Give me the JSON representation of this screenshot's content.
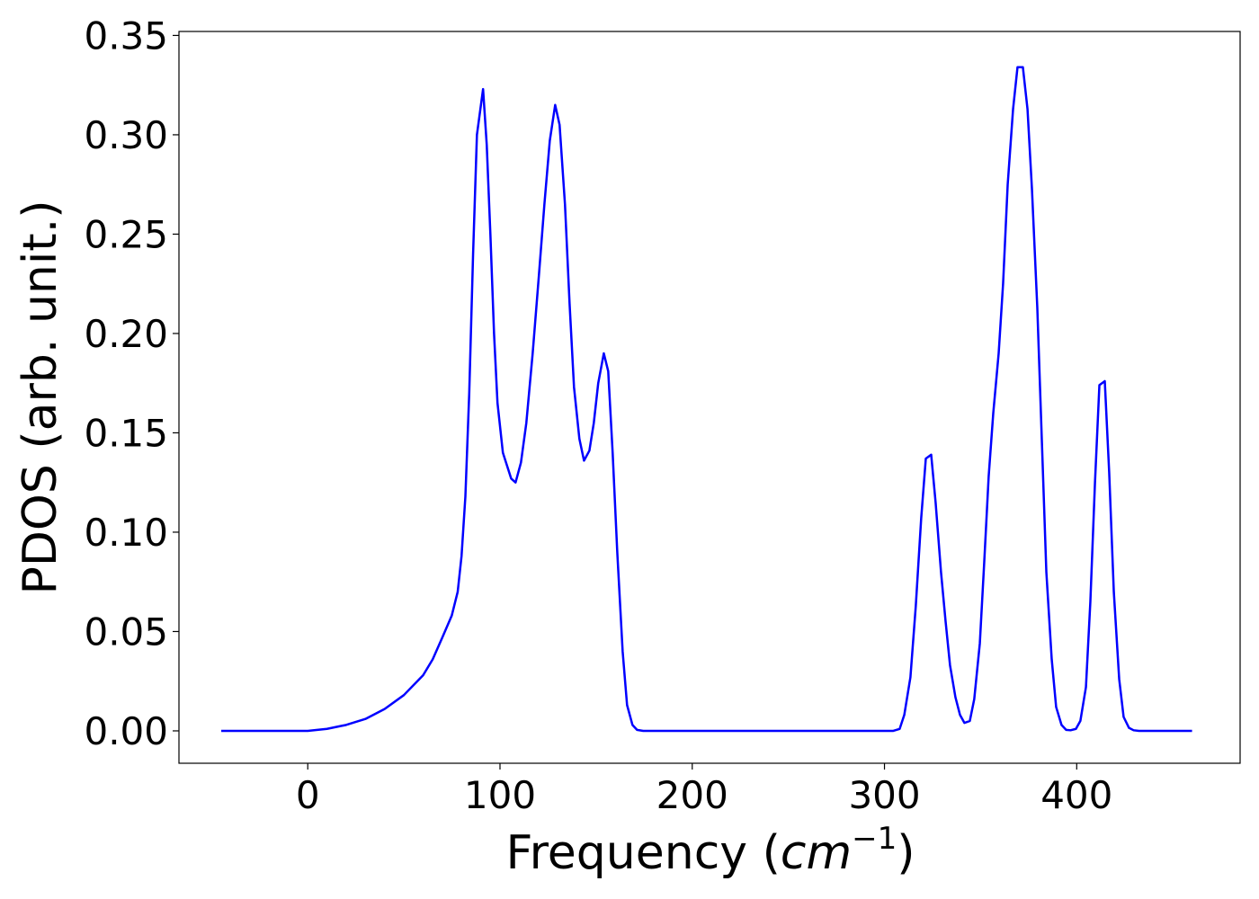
{
  "chart_data": {
    "type": "line",
    "xlabel": [
      "Frequency (",
      "cm",
      "−1",
      ")"
    ],
    "ylabel": "PDOS (arb. unit.)",
    "color": "#0000ff",
    "x": [
      -45,
      0,
      10,
      20,
      30,
      40,
      50,
      60,
      65,
      70,
      74.9,
      78,
      80,
      82,
      84,
      86,
      88,
      91.2,
      93.1,
      95,
      96.9,
      98.7,
      101.5,
      105.8,
      108.1,
      110.9,
      113.7,
      117,
      120.3,
      123.1,
      125.9,
      128.7,
      131,
      133.8,
      136.2,
      138.5,
      141.3,
      143.7,
      146.5,
      148.8,
      151.1,
      154,
      156.3,
      158.6,
      161,
      163.8,
      166.1,
      168.9,
      171.3,
      174.5,
      304.6,
      307.9,
      310.3,
      313.5,
      316.3,
      319.1,
      321.5,
      324.3,
      326.6,
      329.4,
      331.8,
      334.1,
      336.9,
      339.3,
      341.6,
      344.4,
      346.7,
      349.6,
      351.9,
      354.2,
      356.6,
      359.4,
      361.7,
      364.1,
      366.9,
      369.2,
      372,
      374.4,
      376.7,
      379.5,
      381.9,
      384.2,
      387,
      389.3,
      392.1,
      394.5,
      396.8,
      399.6,
      401.9,
      404.8,
      407.1,
      409.5,
      411.8,
      414.6,
      416.9,
      419.3,
      422.1,
      424.4,
      427.2,
      429.6,
      432.4,
      460
    ],
    "values": [
      0,
      0,
      0.001,
      0.003,
      0.006,
      0.011,
      0.018,
      0.028,
      0.036,
      0.047,
      0.058,
      0.07,
      0.088,
      0.118,
      0.17,
      0.24,
      0.3,
      0.323,
      0.295,
      0.25,
      0.2,
      0.165,
      0.14,
      0.127,
      0.125,
      0.135,
      0.155,
      0.19,
      0.23,
      0.265,
      0.297,
      0.315,
      0.305,
      0.265,
      0.215,
      0.173,
      0.147,
      0.136,
      0.141,
      0.155,
      0.175,
      0.19,
      0.181,
      0.14,
      0.09,
      0.04,
      0.013,
      0.003,
      0.0005,
      0,
      0,
      0.001,
      0.008,
      0.027,
      0.063,
      0.107,
      0.137,
      0.139,
      0.115,
      0.08,
      0.055,
      0.033,
      0.017,
      0.008,
      0.004,
      0.005,
      0.016,
      0.044,
      0.085,
      0.128,
      0.16,
      0.19,
      0.225,
      0.275,
      0.313,
      0.334,
      0.334,
      0.313,
      0.273,
      0.213,
      0.145,
      0.08,
      0.036,
      0.012,
      0.003,
      0.0005,
      0.0003,
      0.001,
      0.005,
      0.022,
      0.065,
      0.125,
      0.174,
      0.176,
      0.13,
      0.07,
      0.026,
      0.007,
      0.0015,
      0.0003,
      0,
      0
    ],
    "xlim": [
      -67,
      485
    ],
    "ylim": [
      -0.0163,
      0.352
    ],
    "xticks": [
      0,
      100,
      200,
      300,
      400
    ],
    "yticks": [
      {
        "value": 0,
        "label": "0.00"
      },
      {
        "value": 0.05,
        "label": "0.05"
      },
      {
        "value": 0.1,
        "label": "0.10"
      },
      {
        "value": 0.15,
        "label": "0.15"
      },
      {
        "value": 0.2,
        "label": "0.20"
      },
      {
        "value": 0.25,
        "label": "0.25"
      },
      {
        "value": 0.3,
        "label": "0.30"
      },
      {
        "value": 0.35,
        "label": "0.35"
      }
    ],
    "grid": false
  }
}
